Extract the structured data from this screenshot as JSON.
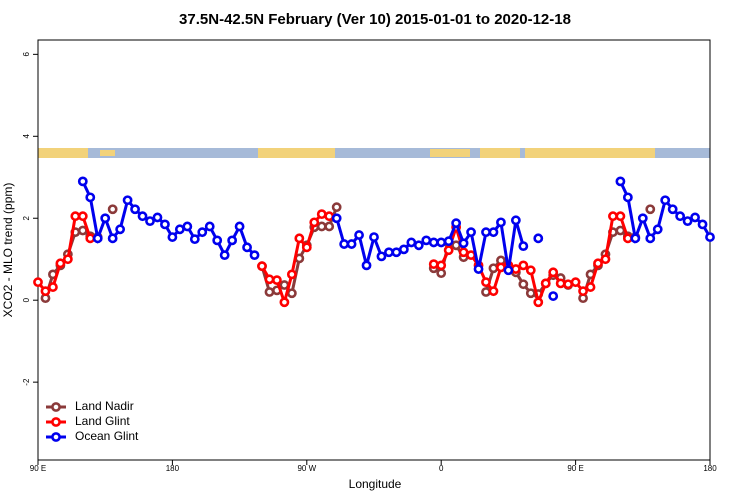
{
  "chart_data": {
    "type": "line",
    "title": "37.5N-42.5N February (Ver 10)   2015-01-01 to 2020-12-18",
    "x_label": "Longitude",
    "y_label": "XCO2 - MLO trend (ppm)",
    "x": [
      90,
      95,
      100,
      105,
      110,
      115,
      120,
      125,
      130,
      135,
      140,
      145,
      150,
      155,
      160,
      165,
      170,
      175,
      180,
      185,
      190,
      195,
      200,
      205,
      210,
      215,
      220,
      225,
      230,
      235,
      240,
      245,
      250,
      255,
      260,
      265,
      270,
      275,
      280,
      285,
      290,
      295,
      300,
      305,
      310,
      315,
      320,
      325,
      330,
      335,
      340,
      345,
      350,
      355,
      360,
      365,
      370,
      375,
      380,
      385,
      390,
      395,
      400,
      405,
      410,
      415,
      420,
      425,
      430,
      435,
      440,
      445,
      450,
      455,
      460,
      465,
      470,
      475,
      480,
      485,
      490,
      495,
      500,
      505,
      510,
      515,
      520,
      525,
      530,
      535,
      540
    ],
    "xlim": [
      90,
      540
    ],
    "xticks": [
      {
        "value": 90,
        "label": "90 E"
      },
      180,
      {
        "value": 270,
        "label": "90 W"
      },
      {
        "value": 360,
        "label": "0"
      },
      {
        "value": 450,
        "label": "90 E"
      },
      {
        "value": 540,
        "label": "180"
      }
    ],
    "ylim": [
      -3.9,
      6.35
    ],
    "yticks": [
      -2,
      0,
      2,
      4,
      6
    ],
    "legend": "bottom left",
    "series": [
      {
        "name": "Land Nadir",
        "color": "#8b3a3a",
        "values": [
          null,
          0.05,
          0.63,
          0.85,
          1.12,
          1.66,
          1.7,
          1.56,
          1.54,
          null,
          2.22,
          null,
          null,
          null,
          null,
          null,
          null,
          null,
          null,
          null,
          null,
          null,
          null,
          null,
          null,
          null,
          null,
          null,
          null,
          null,
          0.83,
          0.2,
          0.24,
          0.37,
          0.17,
          1.02,
          1.34,
          1.78,
          1.8,
          1.8,
          2.27,
          null,
          null,
          null,
          null,
          null,
          null,
          null,
          null,
          null,
          null,
          null,
          null,
          0.78,
          0.66,
          1.39,
          1.34,
          1.05,
          null,
          null,
          0.2,
          0.78,
          0.97,
          0.78,
          0.68,
          0.39,
          0.17,
          0.15,
          0.41,
          0.61,
          0.54,
          0.37,
          null,
          0.05,
          0.63,
          0.85,
          1.12,
          1.66,
          1.7,
          1.56,
          1.54,
          null,
          2.22,
          null,
          null,
          null,
          null,
          null,
          null,
          null,
          null
        ]
      },
      {
        "name": "Land Glint",
        "color": "#ff0000",
        "values": [
          0.44,
          0.22,
          0.32,
          0.9,
          1.0,
          2.05,
          2.05,
          1.51,
          null,
          null,
          null,
          null,
          null,
          null,
          null,
          null,
          null,
          null,
          null,
          null,
          null,
          null,
          null,
          null,
          null,
          null,
          null,
          null,
          null,
          null,
          0.83,
          0.51,
          0.49,
          -0.05,
          0.63,
          1.51,
          1.29,
          1.9,
          2.1,
          2.05,
          null,
          null,
          null,
          null,
          null,
          null,
          null,
          null,
          null,
          null,
          null,
          null,
          null,
          0.88,
          0.85,
          1.22,
          1.78,
          1.17,
          1.1,
          0.85,
          0.44,
          0.22,
          0.8,
          0.85,
          0.76,
          0.85,
          0.73,
          -0.05,
          0.41,
          0.68,
          0.41,
          0.39,
          0.44,
          0.22,
          0.32,
          0.9,
          1.0,
          2.05,
          2.05,
          1.51,
          null,
          null,
          null,
          null,
          null,
          null,
          null,
          null,
          null,
          null,
          null
        ]
      },
      {
        "name": "Ocean Glint",
        "color": "#0000ee",
        "values": [
          null,
          null,
          null,
          null,
          null,
          null,
          2.9,
          2.51,
          1.51,
          2.0,
          1.51,
          1.73,
          2.44,
          2.22,
          2.05,
          1.93,
          2.02,
          1.85,
          1.54,
          1.73,
          1.8,
          1.49,
          1.66,
          1.8,
          1.46,
          1.1,
          1.46,
          1.8,
          1.29,
          1.1,
          null,
          null,
          null,
          null,
          null,
          null,
          null,
          null,
          null,
          null,
          2.0,
          1.37,
          1.37,
          1.59,
          0.85,
          1.54,
          1.07,
          1.17,
          1.17,
          1.24,
          1.41,
          1.34,
          1.46,
          1.41,
          1.41,
          1.44,
          1.88,
          1.39,
          1.66,
          0.76,
          1.66,
          1.66,
          1.9,
          0.73,
          1.95,
          1.32,
          null,
          1.51,
          null,
          0.1,
          null,
          null,
          null,
          null,
          null,
          null,
          null,
          null,
          2.9,
          2.51,
          1.51,
          2.0,
          1.51,
          1.73,
          2.44,
          2.22,
          2.05,
          1.93,
          2.02,
          1.85,
          1.54
        ]
      }
    ]
  }
}
